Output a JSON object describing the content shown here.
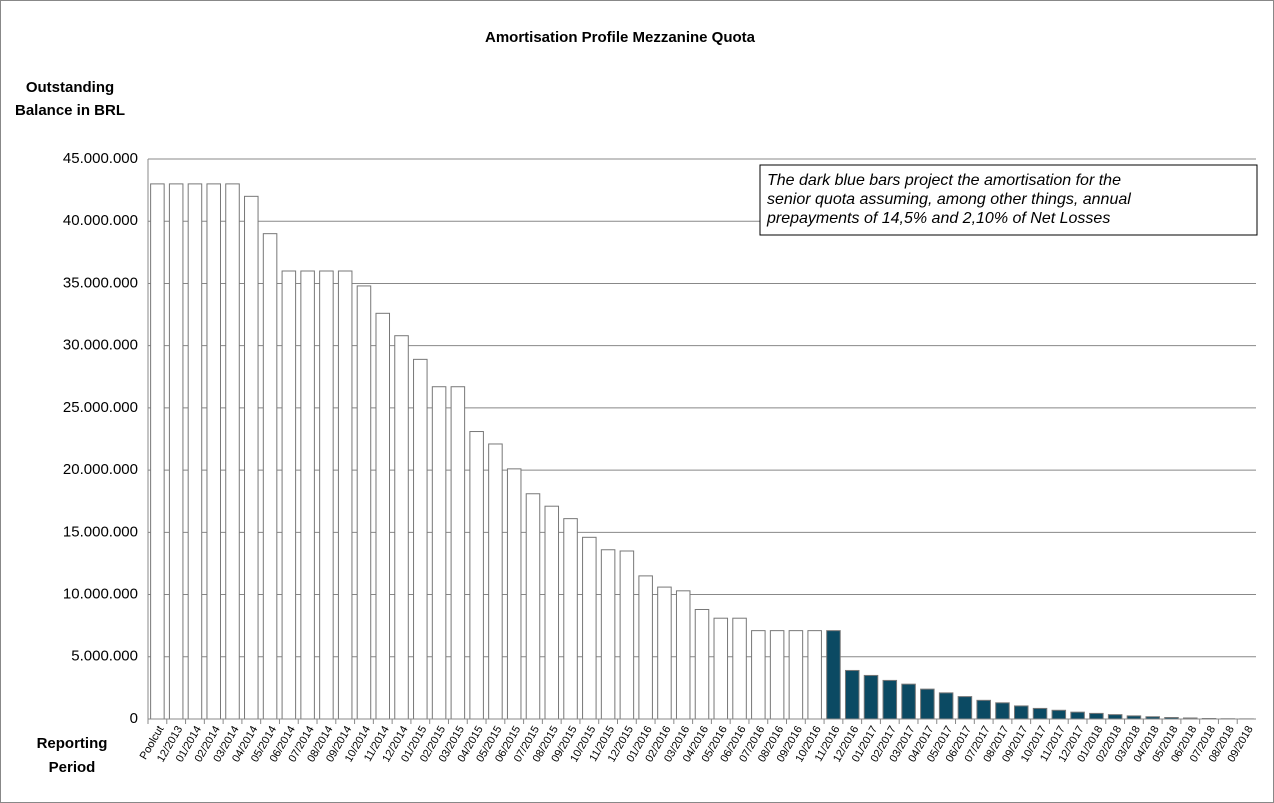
{
  "chart_data": {
    "type": "bar",
    "title": "Amortisation Profile Mezzanine Quota",
    "ylabel": [
      "Outstanding",
      "Balance in BRL"
    ],
    "xlabel": [
      "Reporting",
      "Period"
    ],
    "annotation": [
      "The dark blue bars project the amortisation for the",
      "senior quota assuming, among other things, annual",
      "prepayments of 14,5% and 2,10% of Net Losses"
    ],
    "categories": [
      "Poolcut",
      "12/2013",
      "01/2014",
      "02/2014",
      "03/2014",
      "04/2014",
      "05/2014",
      "06/2014",
      "07/2014",
      "08/2014",
      "09/2014",
      "10/2014",
      "11/2014",
      "12/2014",
      "01/2015",
      "02/2015",
      "03/2015",
      "04/2015",
      "05/2015",
      "06/2015",
      "07/2015",
      "08/2015",
      "09/2015",
      "10/2015",
      "11/2015",
      "12/2015",
      "01/2016",
      "02/2016",
      "03/2016",
      "04/2016",
      "05/2016",
      "06/2016",
      "07/2016",
      "08/2016",
      "09/2016",
      "10/2016",
      "11/2016",
      "12/2016",
      "01/2017",
      "02/2017",
      "03/2017",
      "04/2017",
      "05/2017",
      "06/2017",
      "07/2017",
      "08/2017",
      "09/2017",
      "10/2017",
      "11/2017",
      "12/2017",
      "01/2018",
      "02/2018",
      "03/2018",
      "04/2018",
      "05/2018",
      "06/2018",
      "07/2018",
      "08/2018",
      "09/2018"
    ],
    "values": [
      43000000,
      43000000,
      43000000,
      43000000,
      43000000,
      42000000,
      39000000,
      36000000,
      36000000,
      36000000,
      36000000,
      34800000,
      32600000,
      30800000,
      28900000,
      26700000,
      26700000,
      23100000,
      22100000,
      20100000,
      18100000,
      17100000,
      16100000,
      14600000,
      13600000,
      13500000,
      11500000,
      10600000,
      10300000,
      8800000,
      8100000,
      8100000,
      7100000,
      7100000,
      7100000,
      7100000,
      7100000,
      3900000,
      3500000,
      3100000,
      2800000,
      2400000,
      2100000,
      1800000,
      1500000,
      1300000,
      1050000,
      850000,
      700000,
      550000,
      450000,
      350000,
      250000,
      180000,
      120000,
      80000,
      40000,
      20000,
      10000
    ],
    "colors": [
      "#ffffff",
      "#ffffff",
      "#ffffff",
      "#ffffff",
      "#ffffff",
      "#ffffff",
      "#ffffff",
      "#ffffff",
      "#ffffff",
      "#ffffff",
      "#ffffff",
      "#ffffff",
      "#ffffff",
      "#ffffff",
      "#ffffff",
      "#ffffff",
      "#ffffff",
      "#ffffff",
      "#ffffff",
      "#ffffff",
      "#ffffff",
      "#ffffff",
      "#ffffff",
      "#ffffff",
      "#ffffff",
      "#ffffff",
      "#ffffff",
      "#ffffff",
      "#ffffff",
      "#ffffff",
      "#ffffff",
      "#ffffff",
      "#ffffff",
      "#ffffff",
      "#ffffff",
      "#ffffff",
      "#0b4a63",
      "#0b4a63",
      "#0b4a63",
      "#0b4a63",
      "#0b4a63",
      "#0b4a63",
      "#0b4a63",
      "#0b4a63",
      "#0b4a63",
      "#0b4a63",
      "#0b4a63",
      "#0b4a63",
      "#0b4a63",
      "#0b4a63",
      "#0b4a63",
      "#0b4a63",
      "#0b4a63",
      "#0b4a63",
      "#0b4a63",
      "#0b4a63",
      "#0b4a63",
      "#0b4a63",
      "#0b4a63"
    ],
    "ylim": [
      0,
      45000000
    ],
    "yticks": [
      0,
      {
        "value": 5000000,
        "label": "5.000.000"
      },
      {
        "value": 10000000,
        "label": "10.000.000"
      },
      {
        "value": 15000000,
        "label": "15.000.000"
      },
      {
        "value": 20000000,
        "label": "20.000.000"
      },
      {
        "value": 25000000,
        "label": "25.000.000"
      },
      {
        "value": 30000000,
        "label": "30.000.000"
      },
      {
        "value": 35000000,
        "label": "35.000.000"
      },
      {
        "value": 40000000,
        "label": "40.000.000"
      },
      {
        "value": 45000000,
        "label": "45.000.000"
      }
    ],
    "grid": true
  }
}
